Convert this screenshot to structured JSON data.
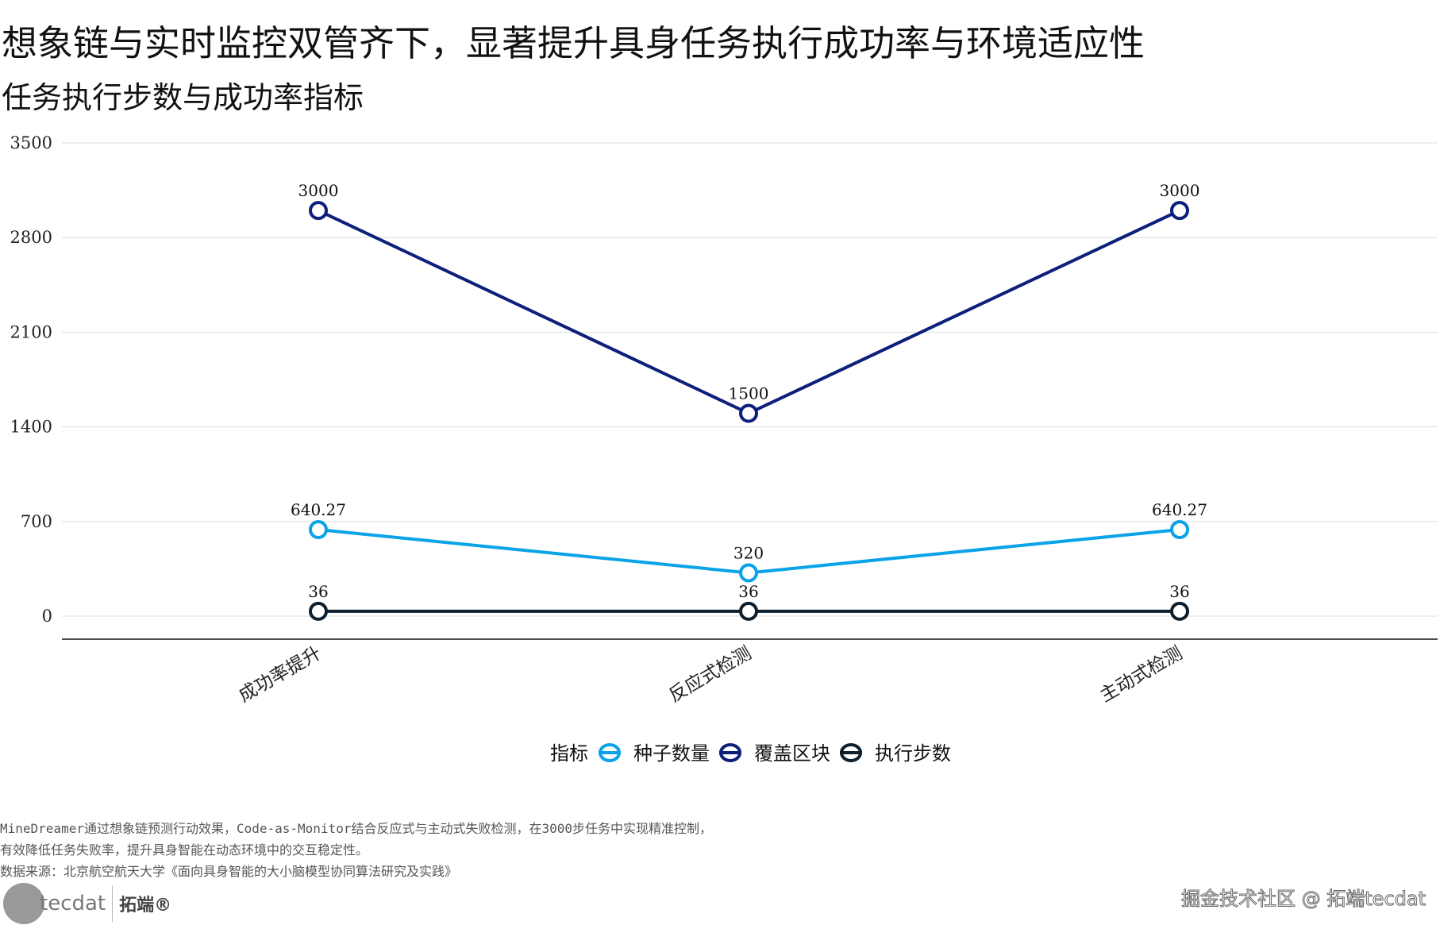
{
  "header": {
    "title": "想象链与实时监控双管齐下，显著提升具身任务执行成功率与环境适应性",
    "subtitle": "任务执行步数与成功率指标"
  },
  "chart_data": {
    "type": "line",
    "categories": [
      "成功率提升",
      "反应式检测",
      "主动式检测"
    ],
    "ylim": [
      0,
      3500
    ],
    "yticks": [
      0,
      700,
      1400,
      2100,
      2800,
      3500
    ],
    "grid": true,
    "legend_title": "指标",
    "legend_placement": "bottom",
    "series": [
      {
        "name": "种子数量",
        "values": [
          640.27,
          320,
          640.27
        ],
        "labels": [
          "640.27",
          "320",
          "640.27"
        ],
        "color": "#0aa3e8"
      },
      {
        "name": "覆盖区块",
        "values": [
          3000,
          1500,
          3000
        ],
        "labels": [
          "3000",
          "1500",
          "3000"
        ],
        "color": "#0c1f7a"
      },
      {
        "name": "执行步数",
        "values": [
          36,
          36,
          36
        ],
        "labels": [
          "36",
          "36",
          "36"
        ],
        "color": "#0d1f2d"
      }
    ]
  },
  "footer": {
    "note1": "MineDreamer通过想象链预测行动效果，Code-as-Monitor结合反应式与主动式失败检测，在3000步任务中实现精准控制，",
    "note2": "有效降低任务失败率，提升具身智能在动态环境中的交互稳定性。",
    "source": "数据来源：北京航空航天大学《面向具身智能的大小脑模型协同算法研究及实践》",
    "logo_text": "tecdat",
    "logo_cn": "拓端®",
    "watermark": "掘金技术社区 @ 拓端tecdat"
  }
}
